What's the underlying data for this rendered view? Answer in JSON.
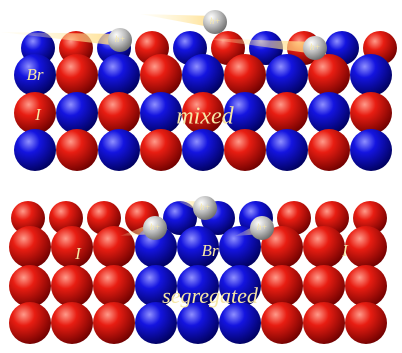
{
  "top": {
    "labels": [
      "Br",
      "I"
    ],
    "caption": "mixed",
    "holes": [
      "h+",
      "h+",
      "h+"
    ]
  },
  "bottom": {
    "labels": [
      "I",
      "Br",
      "I"
    ],
    "caption": "segregated",
    "holes": [
      "h+",
      "h+",
      "h+"
    ]
  }
}
